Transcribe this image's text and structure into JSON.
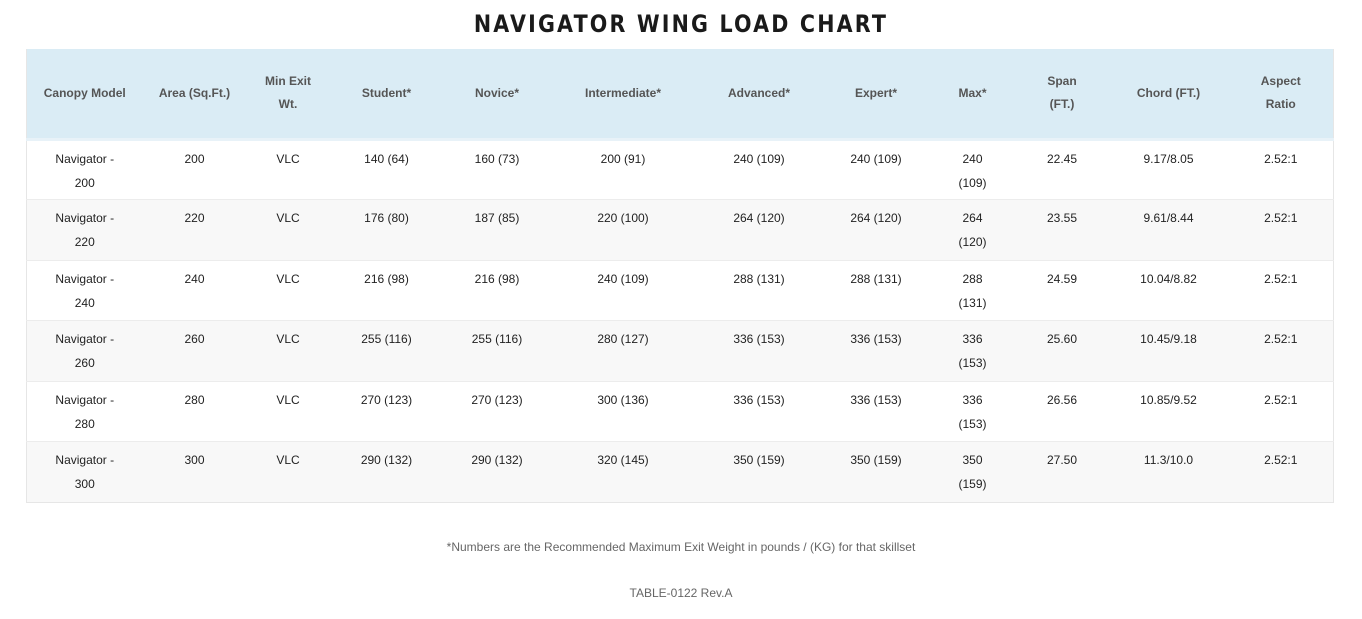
{
  "title": "NAVIGATOR WING LOAD CHART",
  "table": {
    "headers": [
      "Canopy Model",
      "Area (Sq.Ft.)",
      "Min Exit Wt.",
      "Student*",
      "Novice*",
      "Intermediate*",
      "Advanced*",
      "Expert*",
      "Max*",
      "Span (FT.)",
      "Chord (FT.)",
      "Aspect Ratio"
    ],
    "rows": [
      [
        "Navigator - 200",
        "200",
        "VLC",
        "140 (64)",
        "160 (73)",
        "200 (91)",
        "240 (109)",
        "240 (109)",
        "240 (109)",
        "22.45",
        "9.17/8.05",
        "2.52:1"
      ],
      [
        "Navigator - 220",
        "220",
        "VLC",
        "176 (80)",
        "187 (85)",
        "220 (100)",
        "264 (120)",
        "264 (120)",
        "264 (120)",
        "23.55",
        "9.61/8.44",
        "2.52:1"
      ],
      [
        "Navigator - 240",
        "240",
        "VLC",
        "216 (98)",
        "216 (98)",
        "240 (109)",
        "288 (131)",
        "288 (131)",
        "288 (131)",
        "24.59",
        "10.04/8.82",
        "2.52:1"
      ],
      [
        "Navigator - 260",
        "260",
        "VLC",
        "255 (116)",
        "255 (116)",
        "280 (127)",
        "336 (153)",
        "336 (153)",
        "336 (153)",
        "25.60",
        "10.45/9.18",
        "2.52:1"
      ],
      [
        "Navigator - 280",
        "280",
        "VLC",
        "270 (123)",
        "270 (123)",
        "300 (136)",
        "336 (153)",
        "336 (153)",
        "336 (153)",
        "26.56",
        "10.85/9.52",
        "2.52:1"
      ],
      [
        "Navigator - 300",
        "300",
        "VLC",
        "290 (132)",
        "290 (132)",
        "320 (145)",
        "350 (159)",
        "350 (159)",
        "350 (159)",
        "27.50",
        "11.3/10.0",
        "2.52:1"
      ]
    ]
  },
  "footnote": "*Numbers are the Recommended Maximum Exit Weight in pounds / (KG) for that skillset",
  "reference": "TABLE-0122 Rev.A"
}
